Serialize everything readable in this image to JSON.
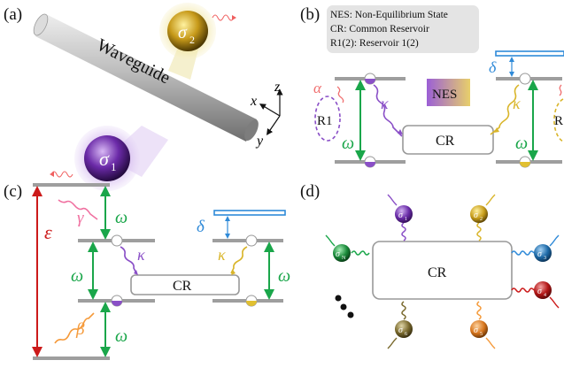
{
  "panels": {
    "a": {
      "label": "(a)",
      "waveguide_label": "Waveguide",
      "sigma1": "σ",
      "sigma1_sub": "1",
      "sigma2": "σ",
      "sigma2_sub": "2",
      "axis_x": "x",
      "axis_y": "y",
      "axis_z": "z"
    },
    "b": {
      "label": "(b)",
      "legend": [
        "NES: Non-Equilibrium State",
        "CR: Common Reservoir",
        "R1(2): Reservoir 1(2)"
      ],
      "nes_box": "NES",
      "cr_box": "CR",
      "r1": "R1",
      "r2_partial": "R",
      "alpha": "α",
      "kappa_left": "κ",
      "kappa_right": "κ",
      "omega_left": "ω",
      "omega_right": "ω",
      "delta": "δ"
    },
    "c": {
      "label": "(c)",
      "epsilon": "ε",
      "gamma": "γ",
      "beta": "β",
      "omega_top": "ω",
      "omega_mid": "ω",
      "omega_bot": "ω",
      "omega_right": "ω",
      "kappa_left": "κ",
      "kappa_right": "κ",
      "delta": "δ",
      "cr_box": "CR"
    },
    "d": {
      "label": "(d)",
      "cr_box": "CR",
      "nodes": [
        {
          "sym": "σ",
          "sub": "1"
        },
        {
          "sym": "σ",
          "sub": "2"
        },
        {
          "sym": "σ",
          "sub": "3"
        },
        {
          "sym": "σ",
          "sub": "4"
        },
        {
          "sym": "σ",
          "sub": "5"
        },
        {
          "sym": "σ",
          "sub": "6"
        },
        {
          "sym": "σ",
          "sub": "N"
        }
      ]
    }
  },
  "colors": {
    "purple": "#8a4fc7",
    "gold": "#d9b52a",
    "green": "#1aa64a",
    "red": "#cc1a1a",
    "pink": "#f070a0",
    "orange": "#f59a3a",
    "blue": "#2f8ad8",
    "gray_level": "#999999",
    "legend_bg": "#e6e6e6"
  }
}
